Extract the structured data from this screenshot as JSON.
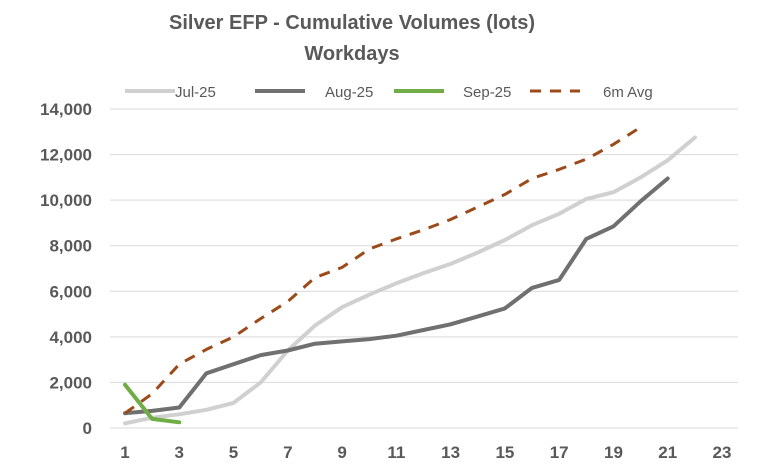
{
  "chart_data": {
    "type": "line",
    "title": "Silver EFP - Cumulative Volumes (lots)",
    "subtitle": "Workdays",
    "xlabel": "",
    "ylabel": "",
    "xlim": [
      1,
      23
    ],
    "ylim": [
      0,
      14000
    ],
    "x_ticks": [
      1,
      3,
      5,
      7,
      9,
      11,
      13,
      15,
      17,
      19,
      21,
      23
    ],
    "y_ticks": [
      0,
      2000,
      4000,
      6000,
      8000,
      10000,
      12000,
      14000
    ],
    "y_tick_labels": [
      "0",
      "2,000",
      "4,000",
      "6,000",
      "8,000",
      "10,000",
      "12,000",
      "14,000"
    ],
    "grid": "horizontal",
    "legend_position": "top",
    "series": [
      {
        "name": "Jul-25",
        "color": "#d0d0d0",
        "dash": "solid",
        "x": [
          1,
          2,
          3,
          4,
          5,
          6,
          7,
          8,
          9,
          10,
          11,
          12,
          13,
          14,
          15,
          16,
          17,
          18,
          19,
          20,
          21,
          22
        ],
        "values": [
          200,
          450,
          600,
          800,
          1100,
          2000,
          3400,
          4500,
          5300,
          5850,
          6350,
          6800,
          7200,
          7700,
          8250,
          8900,
          9400,
          10050,
          10350,
          11000,
          11750,
          12750
        ]
      },
      {
        "name": "Aug-25",
        "color": "#707070",
        "dash": "solid",
        "x": [
          1,
          2,
          3,
          4,
          5,
          6,
          7,
          8,
          9,
          10,
          11,
          12,
          13,
          14,
          15,
          16,
          17,
          18,
          19,
          20,
          21
        ],
        "values": [
          650,
          750,
          900,
          2400,
          2800,
          3200,
          3400,
          3700,
          3800,
          3900,
          4050,
          4300,
          4550,
          4900,
          5250,
          6150,
          6500,
          8300,
          8850,
          9950,
          10950
        ]
      },
      {
        "name": "Sep-25",
        "color": "#70ad47",
        "dash": "solid",
        "x": [
          1,
          2,
          3
        ],
        "values": [
          1900,
          400,
          250
        ]
      },
      {
        "name": "6m Avg",
        "color": "#9c4a1a",
        "dash": "dashed",
        "x": [
          1,
          2,
          3,
          4,
          5,
          6,
          7,
          8,
          9,
          10,
          11,
          12,
          13,
          14,
          15,
          16,
          17,
          18,
          19,
          20
        ],
        "values": [
          650,
          1500,
          2800,
          3450,
          4000,
          4800,
          5550,
          6600,
          7050,
          7850,
          8300,
          8700,
          9150,
          9700,
          10250,
          10950,
          11350,
          11800,
          12450,
          13200
        ]
      }
    ]
  }
}
